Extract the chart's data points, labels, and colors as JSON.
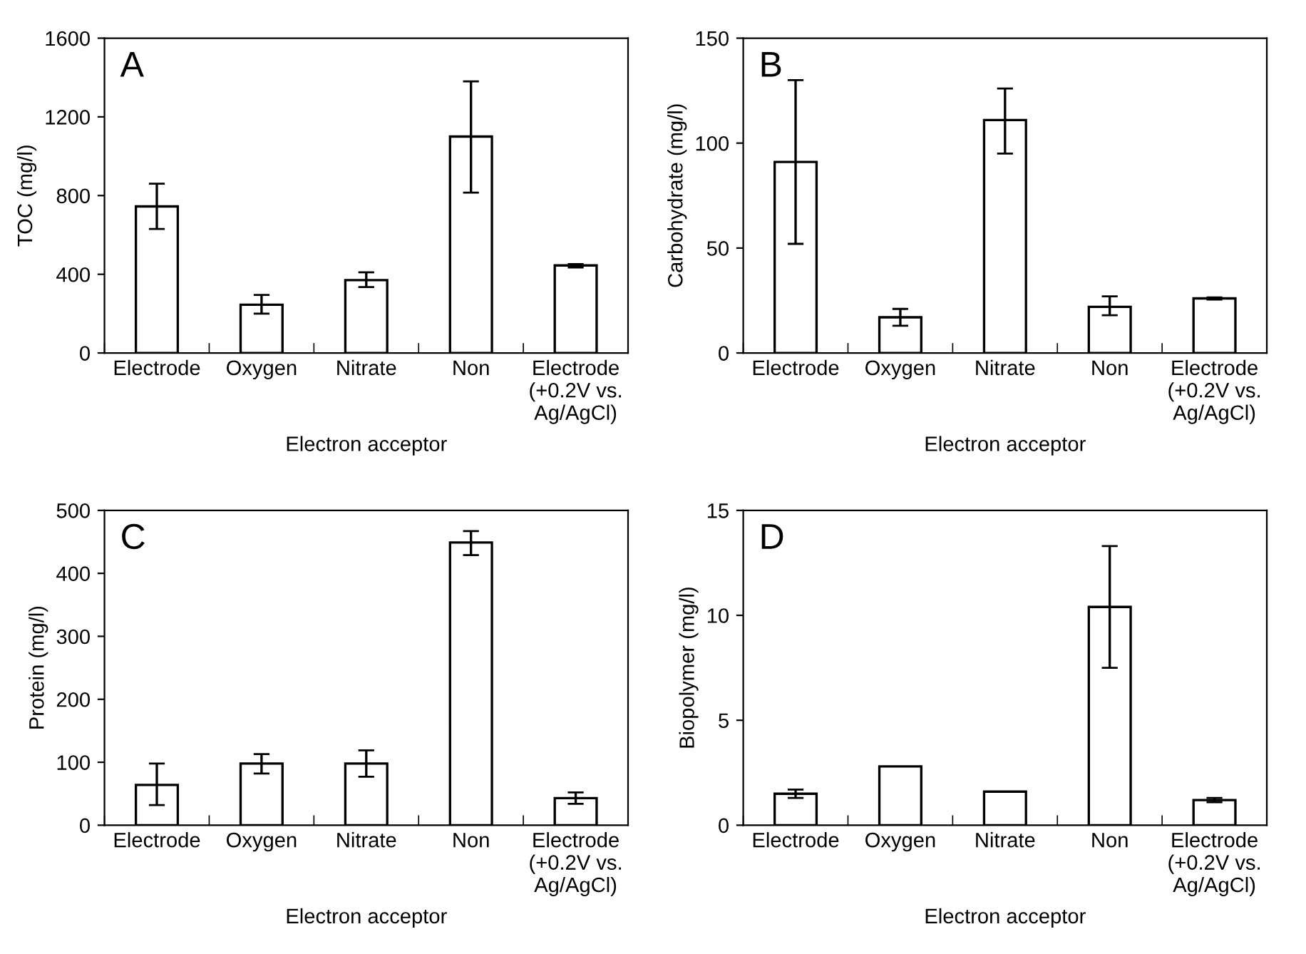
{
  "chart_data": [
    {
      "type": "bar",
      "categories": [
        "Electrode",
        "Oxygen",
        "Nitrate",
        "Non",
        "Electrode\n(+0.2V vs.\nAg/AgCl)"
      ],
      "values": [
        745,
        245,
        370,
        1100,
        445
      ],
      "errors": [
        [
          630,
          860
        ],
        [
          200,
          295
        ],
        [
          335,
          410
        ],
        [
          815,
          1380
        ],
        [
          435,
          452
        ]
      ],
      "color": "#ffffff",
      "ylabel": "TOC (mg/l)",
      "xlabel": "Electron acceptor",
      "ylim": [
        0,
        1600
      ],
      "yticks": [
        0,
        400,
        800,
        1200,
        1600
      ],
      "annotations": [
        "A"
      ],
      "grid": false,
      "legend": false
    },
    {
      "type": "bar",
      "categories": [
        "Electrode",
        "Oxygen",
        "Nitrate",
        "Non",
        "Electrode\n(+0.2V vs.\nAg/AgCl)"
      ],
      "values": [
        91,
        17,
        111,
        22,
        26
      ],
      "errors": [
        [
          52,
          130
        ],
        [
          13,
          21
        ],
        [
          95,
          126
        ],
        [
          18,
          27
        ],
        [
          25.5,
          26.5
        ]
      ],
      "color": "#ffffff",
      "ylabel": "Carbohydrate (mg/l)",
      "xlabel": "Electron acceptor",
      "ylim": [
        0,
        150
      ],
      "yticks": [
        0,
        50,
        100,
        150
      ],
      "annotations": [
        "B"
      ],
      "grid": false,
      "legend": false
    },
    {
      "type": "bar",
      "categories": [
        "Electrode",
        "Oxygen",
        "Nitrate",
        "Non",
        "Electrode\n(+0.2V vs.\nAg/AgCl)"
      ],
      "values": [
        64,
        98,
        98,
        449,
        43
      ],
      "errors": [
        [
          32,
          98
        ],
        [
          82,
          113
        ],
        [
          77,
          119
        ],
        [
          429,
          467
        ],
        [
          34,
          52
        ]
      ],
      "color": "#ffffff",
      "ylabel": "Protein (mg/l)",
      "xlabel": "Electron acceptor",
      "ylim": [
        0,
        500
      ],
      "yticks": [
        0,
        100,
        200,
        300,
        400,
        500
      ],
      "annotations": [
        "C"
      ],
      "grid": false,
      "legend": false
    },
    {
      "type": "bar",
      "categories": [
        "Electrode",
        "Oxygen",
        "Nitrate",
        "Non",
        "Electrode\n(+0.2V vs.\nAg/AgCl)"
      ],
      "values": [
        1.5,
        2.8,
        1.6,
        10.4,
        1.2
      ],
      "errors": [
        [
          1.3,
          1.7
        ],
        null,
        null,
        [
          7.5,
          13.3
        ],
        [
          1.1,
          1.3
        ]
      ],
      "color": "#ffffff",
      "ylabel": "Biopolymer (mg/l)",
      "xlabel": "Electron acceptor",
      "ylim": [
        0,
        15
      ],
      "yticks": [
        0,
        5,
        10,
        15
      ],
      "annotations": [
        "D"
      ],
      "grid": false,
      "legend": false
    }
  ]
}
